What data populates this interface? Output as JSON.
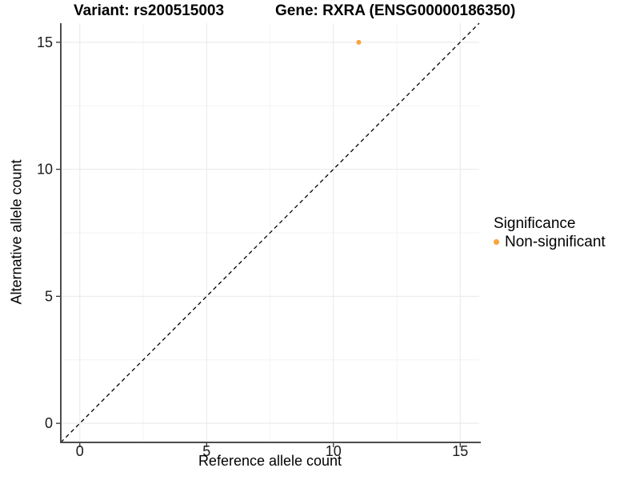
{
  "chart_data": {
    "type": "scatter",
    "title_left": "Variant: rs200515003",
    "title_right": "Gene: RXRA (ENSG00000186350)",
    "xlabel": "Reference allele count",
    "ylabel": "Alternative allele count",
    "xlim": [
      -0.75,
      15.75
    ],
    "ylim": [
      -0.75,
      15.75
    ],
    "x_ticks": [
      0,
      5,
      10,
      15
    ],
    "y_ticks": [
      0,
      5,
      10,
      15
    ],
    "x_minor_ticks": [
      2.5,
      7.5,
      12.5
    ],
    "y_minor_ticks": [
      2.5,
      7.5,
      12.5
    ],
    "grid": "major and minor gridlines on white background",
    "reference_line": {
      "type": "identity y=x",
      "style": "dashed",
      "color": "#000000"
    },
    "series": [
      {
        "name": "Non-significant",
        "color": "#F9A43C",
        "points": [
          {
            "x": 11,
            "y": 15
          }
        ]
      }
    ],
    "legend": {
      "position": "right",
      "title": "Significance",
      "items": [
        {
          "label": "Non-significant",
          "color": "#F9A43C"
        }
      ]
    }
  },
  "colors": {
    "background": "#FFFFFF",
    "grid_major": "#E8E8E8",
    "grid_minor": "#F3F3F3",
    "axis_line": "#4D4D4D",
    "tick_mark": "#333333",
    "tick_text": "#1A1A1A",
    "point": "#F9A43C"
  }
}
